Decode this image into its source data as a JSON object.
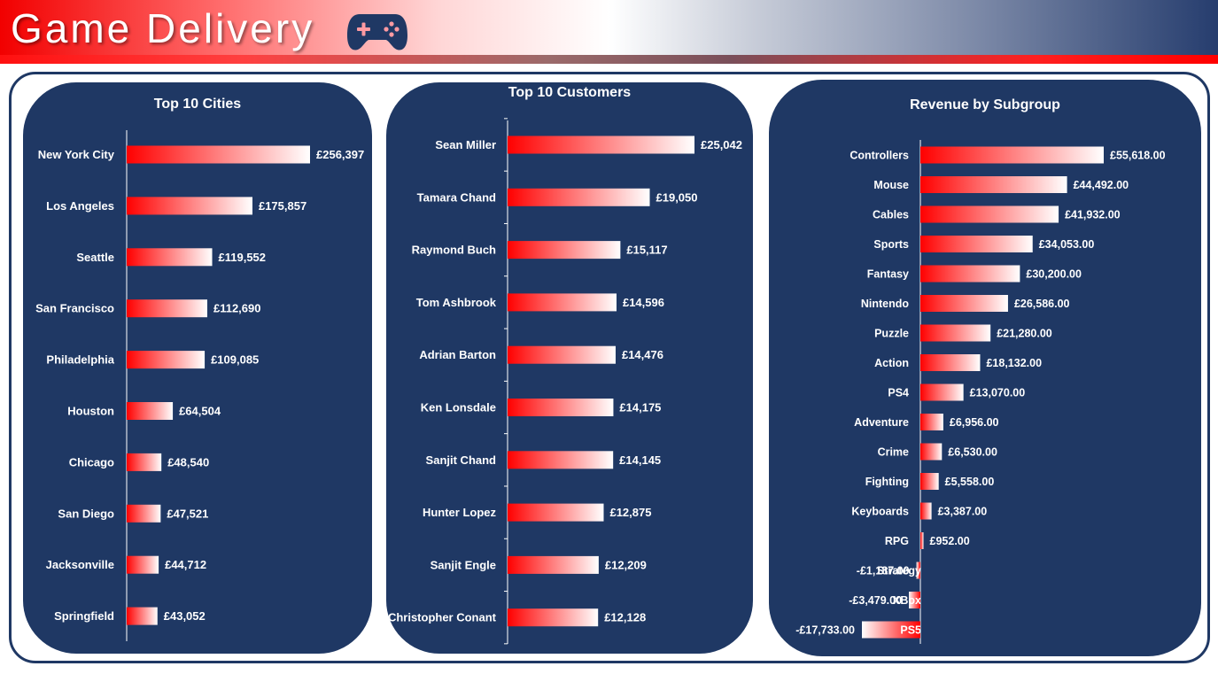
{
  "header": {
    "title": "Game Delivery",
    "icon": "gamepad-icon",
    "colors": {
      "red": "#f20000",
      "navy": "#1f3864"
    }
  },
  "panels": {
    "cities": {
      "title": "Top 10 Cities"
    },
    "customers": {
      "title": "Top 10 Customers"
    },
    "subgroup": {
      "title": "Revenue by Subgroup"
    }
  },
  "chart_data": [
    {
      "id": "cities",
      "type": "bar",
      "orientation": "horizontal",
      "title": "Top 10 Cities",
      "categories": [
        "New York City",
        "Los Angeles",
        "Seattle",
        "San Francisco",
        "Philadelphia",
        "Houston",
        "Chicago",
        "San Diego",
        "Jacksonville",
        "Springfield"
      ],
      "values": [
        256397,
        175857,
        119552,
        112690,
        109085,
        64504,
        48540,
        47521,
        44712,
        43052
      ],
      "data_labels": [
        "£256,397",
        "£175,857",
        "£119,552",
        "£112,690",
        "£109,085",
        "£64,504",
        "£48,540",
        "£47,521",
        "£44,712",
        "£43,052"
      ],
      "bar_gradient": [
        "#ff0000",
        "#ffffff"
      ],
      "xlim": [
        0,
        256397
      ]
    },
    {
      "id": "customers",
      "type": "bar",
      "orientation": "horizontal",
      "title": "Top 10 Customers",
      "categories": [
        "Sean Miller",
        "Tamara Chand",
        "Raymond Buch",
        "Tom Ashbrook",
        "Adrian Barton",
        "Ken Lonsdale",
        "Sanjit Chand",
        "Hunter Lopez",
        "Sanjit Engle",
        "Christopher Conant"
      ],
      "values": [
        25042,
        19050,
        15117,
        14596,
        14476,
        14175,
        14145,
        12875,
        12209,
        12128
      ],
      "data_labels": [
        "£25,042",
        "£19,050",
        "£15,117",
        "£14,596",
        "£14,476",
        "£14,175",
        "£14,145",
        "£12,875",
        "£12,209",
        "£12,128"
      ],
      "bar_gradient": [
        "#ff0000",
        "#ffffff"
      ],
      "xlim": [
        0,
        25042
      ]
    },
    {
      "id": "subgroup",
      "type": "bar",
      "orientation": "horizontal",
      "title": "Revenue by Subgroup",
      "categories": [
        "Controllers",
        "Mouse",
        "Cables",
        "Sports",
        "Fantasy",
        "Nintendo",
        "Puzzle",
        "Action",
        "PS4",
        "Adventure",
        "Crime",
        "Fighting",
        "Keyboards",
        "RPG",
        "Strategy",
        "XBox",
        "PS5"
      ],
      "values": [
        55618,
        44492,
        41932,
        34053,
        30200,
        26586,
        21280,
        18132,
        13070,
        6956,
        6530,
        5558,
        3387,
        952,
        -1187,
        -3479,
        -17733
      ],
      "data_labels": [
        "£55,618.00",
        "£44,492.00",
        "£41,932.00",
        "£34,053.00",
        "£30,200.00",
        "£26,586.00",
        "£21,280.00",
        "£18,132.00",
        "£13,070.00",
        "£6,956.00",
        "£6,530.00",
        "£5,558.00",
        "£3,387.00",
        "£952.00",
        "-£1,187.00",
        "-£3,479.00",
        "-£17,733.00"
      ],
      "bar_gradient": [
        "#ff0000",
        "#ffffff"
      ],
      "xlim": [
        -17733,
        55618
      ]
    }
  ]
}
